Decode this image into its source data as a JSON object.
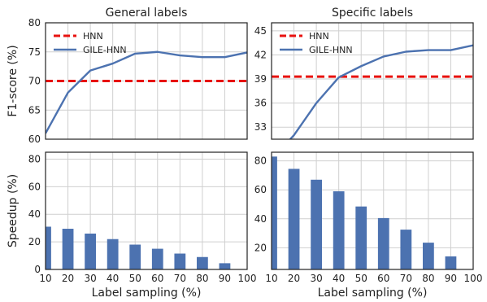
{
  "colors": {
    "hnn": "#e8120f",
    "gile": "#4c72b0",
    "bar": "#4c72b0",
    "grid": "#cfcfcf"
  },
  "chart_data": [
    {
      "id": "f1-general",
      "type": "line",
      "title": "General labels",
      "xlabel": "",
      "ylabel": "F1-score (%)",
      "xlim": [
        10,
        100
      ],
      "ylim": [
        60,
        80
      ],
      "xticks": [],
      "yticks": [
        60,
        65,
        70,
        75,
        80
      ],
      "grid": true,
      "legend": "top-left",
      "series": [
        {
          "name": "HNN",
          "style": "dashed",
          "x": [
            10,
            100
          ],
          "y": [
            70,
            70
          ]
        },
        {
          "name": "GILE-HNN",
          "style": "solid",
          "x": [
            10,
            20,
            30,
            40,
            50,
            60,
            70,
            80,
            90,
            100
          ],
          "y": [
            61,
            68,
            71.8,
            73,
            74.7,
            75,
            74.4,
            74.1,
            74.1,
            74.9
          ]
        }
      ]
    },
    {
      "id": "f1-specific",
      "type": "line",
      "title": "Specific labels",
      "xlabel": "",
      "ylabel": "",
      "xlim": [
        10,
        100
      ],
      "ylim": [
        31.5,
        46
      ],
      "xticks": [],
      "yticks": [
        33,
        36,
        39,
        42,
        45
      ],
      "grid": true,
      "legend": "top-left",
      "series": [
        {
          "name": "HNN",
          "style": "dashed",
          "x": [
            10,
            100
          ],
          "y": [
            39.3,
            39.3
          ]
        },
        {
          "name": "GILE-HNN",
          "style": "solid",
          "x": [
            10,
            20,
            30,
            40,
            50,
            60,
            70,
            80,
            90,
            100
          ],
          "y": [
            29,
            32,
            36,
            39.2,
            40.6,
            41.8,
            42.4,
            42.6,
            42.6,
            43.2
          ]
        }
      ]
    },
    {
      "id": "speedup-general",
      "type": "bar",
      "title": "",
      "xlabel": "Label sampling (%)",
      "ylabel": "Speedup (%)",
      "xlim": [
        10,
        100
      ],
      "ylim": [
        0,
        85
      ],
      "xticks": [
        10,
        20,
        30,
        40,
        50,
        60,
        70,
        80,
        90,
        100
      ],
      "yticks": [
        0,
        20,
        40,
        60,
        80
      ],
      "grid": true,
      "categories": [
        10,
        20,
        30,
        40,
        50,
        60,
        70,
        80,
        90
      ],
      "values": [
        31,
        29.5,
        26,
        22,
        18,
        15,
        11.5,
        9,
        4.5
      ]
    },
    {
      "id": "speedup-specific",
      "type": "bar",
      "title": "",
      "xlabel": "Label sampling (%)",
      "ylabel": "",
      "xlim": [
        10,
        100
      ],
      "ylim": [
        5,
        86
      ],
      "xticks": [
        10,
        20,
        30,
        40,
        50,
        60,
        70,
        80,
        90,
        100
      ],
      "yticks": [
        20,
        40,
        60,
        80
      ],
      "grid": true,
      "categories": [
        10,
        20,
        30,
        40,
        50,
        60,
        70,
        80,
        90
      ],
      "values": [
        83,
        74.5,
        67,
        59,
        48.5,
        40.5,
        32.5,
        23.5,
        14
      ]
    }
  ]
}
